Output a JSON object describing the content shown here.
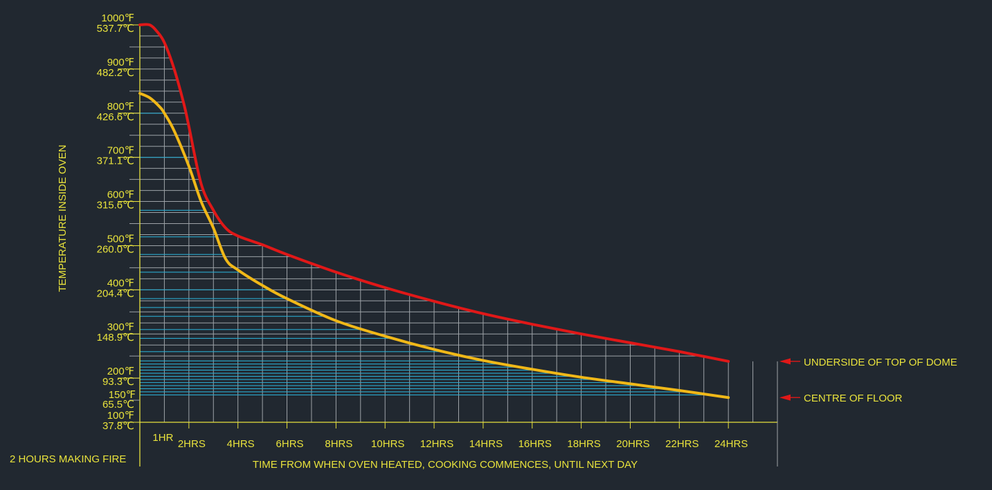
{
  "chart_data": {
    "type": "line",
    "ylabel": "TEMPERATURE INSIDE OVEN",
    "xlabel": "TIME FROM WHEN OVEN HEATED, COOKING COMMENCES, UNTIL NEXT DAY",
    "pre_period_label": "2 HOURS MAKING FIRE",
    "x_range_hours": [
      -2,
      24
    ],
    "y_range_f": [
      100,
      1000
    ],
    "grid": true,
    "legend": "right-end-labels",
    "x_ticks": [
      {
        "value": -1,
        "label": "1HR"
      },
      {
        "value": 0,
        "label": "2HRS"
      },
      {
        "value": 2,
        "label": "4HRS"
      },
      {
        "value": 4,
        "label": "6HRS"
      },
      {
        "value": 6,
        "label": "8HRS"
      },
      {
        "value": 8,
        "label": "10HRS"
      },
      {
        "value": 10,
        "label": "12HRS"
      },
      {
        "value": 12,
        "label": "14HRS"
      },
      {
        "value": 14,
        "label": "16HRS"
      },
      {
        "value": 16,
        "label": "18HRS"
      },
      {
        "value": 18,
        "label": "20HRS"
      },
      {
        "value": 20,
        "label": "22HRS"
      },
      {
        "value": 22,
        "label": "24HRS"
      }
    ],
    "y_ticks": [
      {
        "value": 1000,
        "f": "1000℉",
        "c": "537.7℃"
      },
      {
        "value": 900,
        "f": "900℉",
        "c": "482.2℃"
      },
      {
        "value": 800,
        "f": "800℉",
        "c": "426.6℃"
      },
      {
        "value": 700,
        "f": "700℉",
        "c": "371.1℃"
      },
      {
        "value": 600,
        "f": "600℉",
        "c": "315.6℃"
      },
      {
        "value": 500,
        "f": "500℉",
        "c": "260.0℃"
      },
      {
        "value": 400,
        "f": "400℉",
        "c": "204.4℃"
      },
      {
        "value": 300,
        "f": "300℉",
        "c": "148.9℃"
      },
      {
        "value": 200,
        "f": "200℉",
        "c": "93.3℃"
      },
      {
        "value": 150,
        "f": "150℉",
        "c": "65.5℃"
      },
      {
        "value": 100,
        "f": "100℉",
        "c": "37.8℃"
      }
    ],
    "series": [
      {
        "name": "UNDERSIDE OF TOP OF DOME",
        "color": "#e01818",
        "points": [
          [
            -2,
            1000
          ],
          [
            -1.6,
            1000
          ],
          [
            -1.3,
            985
          ],
          [
            -1,
            960
          ],
          [
            -0.6,
            900
          ],
          [
            -0.2,
            820
          ],
          [
            0,
            770
          ],
          [
            0.5,
            640
          ],
          [
            1,
            580
          ],
          [
            1.5,
            540
          ],
          [
            2,
            522
          ],
          [
            3,
            502
          ],
          [
            4,
            480
          ],
          [
            6,
            440
          ],
          [
            8,
            405
          ],
          [
            10,
            374
          ],
          [
            12,
            346
          ],
          [
            14,
            322
          ],
          [
            16,
            300
          ],
          [
            18,
            280
          ],
          [
            20,
            260
          ],
          [
            22,
            238
          ]
        ]
      },
      {
        "name": "CENTRE OF FLOOR",
        "color": "#f0b818",
        "points": [
          [
            -2,
            845
          ],
          [
            -1.6,
            835
          ],
          [
            -1.2,
            815
          ],
          [
            -1,
            800
          ],
          [
            -0.6,
            760
          ],
          [
            0,
            680
          ],
          [
            0.5,
            600
          ],
          [
            1,
            540
          ],
          [
            1.5,
            470
          ],
          [
            2,
            445
          ],
          [
            3,
            410
          ],
          [
            4,
            380
          ],
          [
            6,
            330
          ],
          [
            8,
            295
          ],
          [
            10,
            265
          ],
          [
            12,
            240
          ],
          [
            14,
            220
          ],
          [
            16,
            202
          ],
          [
            18,
            187
          ],
          [
            20,
            172
          ],
          [
            22,
            156
          ]
        ]
      }
    ]
  }
}
